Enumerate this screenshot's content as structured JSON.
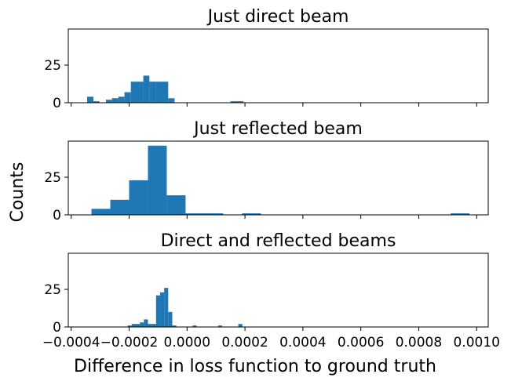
{
  "chart_data": {
    "type": "bar",
    "layout": "three stacked histograms sharing x axis",
    "shared_xlabel": "Difference in loss function to ground truth",
    "shared_ylabel": "Counts",
    "xlim": [
      -0.00041,
      0.00104
    ],
    "xticks": [
      -0.0004,
      -0.0002,
      0.0,
      0.0002,
      0.0004,
      0.0006,
      0.0008,
      0.001
    ],
    "xtick_labels": [
      "−0.0004",
      "−0.0002",
      "0.0000",
      "0.0002",
      "0.0004",
      "0.0006",
      "0.0008",
      "0.0010"
    ],
    "color": "#1f77b4",
    "panels": [
      {
        "title": "Just direct beam",
        "ylim": [
          0,
          49
        ],
        "yticks": [
          0,
          25
        ],
        "bins": [
          {
            "x0": -0.000345,
            "x1": -0.000323,
            "count": 4
          },
          {
            "x0": -0.000323,
            "x1": -0.000302,
            "count": 1
          },
          {
            "x0": -0.00028,
            "x1": -0.000259,
            "count": 2
          },
          {
            "x0": -0.000259,
            "x1": -0.000237,
            "count": 3
          },
          {
            "x0": -0.000237,
            "x1": -0.000216,
            "count": 4
          },
          {
            "x0": -0.000216,
            "x1": -0.000194,
            "count": 7
          },
          {
            "x0": -0.000194,
            "x1": -0.000151,
            "count": 14
          },
          {
            "x0": -0.000151,
            "x1": -0.00013,
            "count": 18
          },
          {
            "x0": -0.00013,
            "x1": -0.000108,
            "count": 14
          },
          {
            "x0": -0.000108,
            "x1": -6.5e-05,
            "count": 14
          },
          {
            "x0": -6.5e-05,
            "x1": -4.3e-05,
            "count": 3
          },
          {
            "x0": 0.00015,
            "x1": 0.000195,
            "count": 1
          }
        ]
      },
      {
        "title": "Just reflected beam",
        "ylim": [
          0,
          49
        ],
        "yticks": [
          0,
          25
        ],
        "bins": [
          {
            "x0": -0.00033,
            "x1": -0.000265,
            "count": 4
          },
          {
            "x0": -0.000265,
            "x1": -0.0002,
            "count": 10
          },
          {
            "x0": -0.0002,
            "x1": -0.000135,
            "count": 23
          },
          {
            "x0": -0.000135,
            "x1": -7e-05,
            "count": 46
          },
          {
            "x0": -7e-05,
            "x1": -5e-06,
            "count": 13
          },
          {
            "x0": -5e-06,
            "x1": 6e-05,
            "count": 1
          },
          {
            "x0": 6e-05,
            "x1": 0.000125,
            "count": 1
          },
          {
            "x0": 0.00019,
            "x1": 0.000255,
            "count": 1
          },
          {
            "x0": 0.00091,
            "x1": 0.000975,
            "count": 1
          }
        ]
      },
      {
        "title": "Direct and reflected beams",
        "ylim": [
          0,
          49
        ],
        "yticks": [
          0,
          25
        ],
        "bins": [
          {
            "x0": -0.000205,
            "x1": -0.000191,
            "count": 1
          },
          {
            "x0": -0.000191,
            "x1": -0.000177,
            "count": 2
          },
          {
            "x0": -0.000177,
            "x1": -0.000163,
            "count": 2
          },
          {
            "x0": -0.000163,
            "x1": -0.000149,
            "count": 3
          },
          {
            "x0": -0.000149,
            "x1": -0.000135,
            "count": 5
          },
          {
            "x0": -0.000135,
            "x1": -0.000121,
            "count": 2
          },
          {
            "x0": -0.000121,
            "x1": -0.000107,
            "count": 2
          },
          {
            "x0": -0.000107,
            "x1": -9.3e-05,
            "count": 21
          },
          {
            "x0": -9.3e-05,
            "x1": -7.9e-05,
            "count": 23
          },
          {
            "x0": -7.9e-05,
            "x1": -6.5e-05,
            "count": 26
          },
          {
            "x0": -6.5e-05,
            "x1": -5.1e-05,
            "count": 10
          },
          {
            "x0": -5.1e-05,
            "x1": -3.7e-05,
            "count": 1
          },
          {
            "x0": 1.9e-05,
            "x1": 3.3e-05,
            "count": 1
          },
          {
            "x0": 0.000107,
            "x1": 0.000121,
            "count": 1
          },
          {
            "x0": 0.000177,
            "x1": 0.000191,
            "count": 2
          }
        ]
      }
    ]
  }
}
